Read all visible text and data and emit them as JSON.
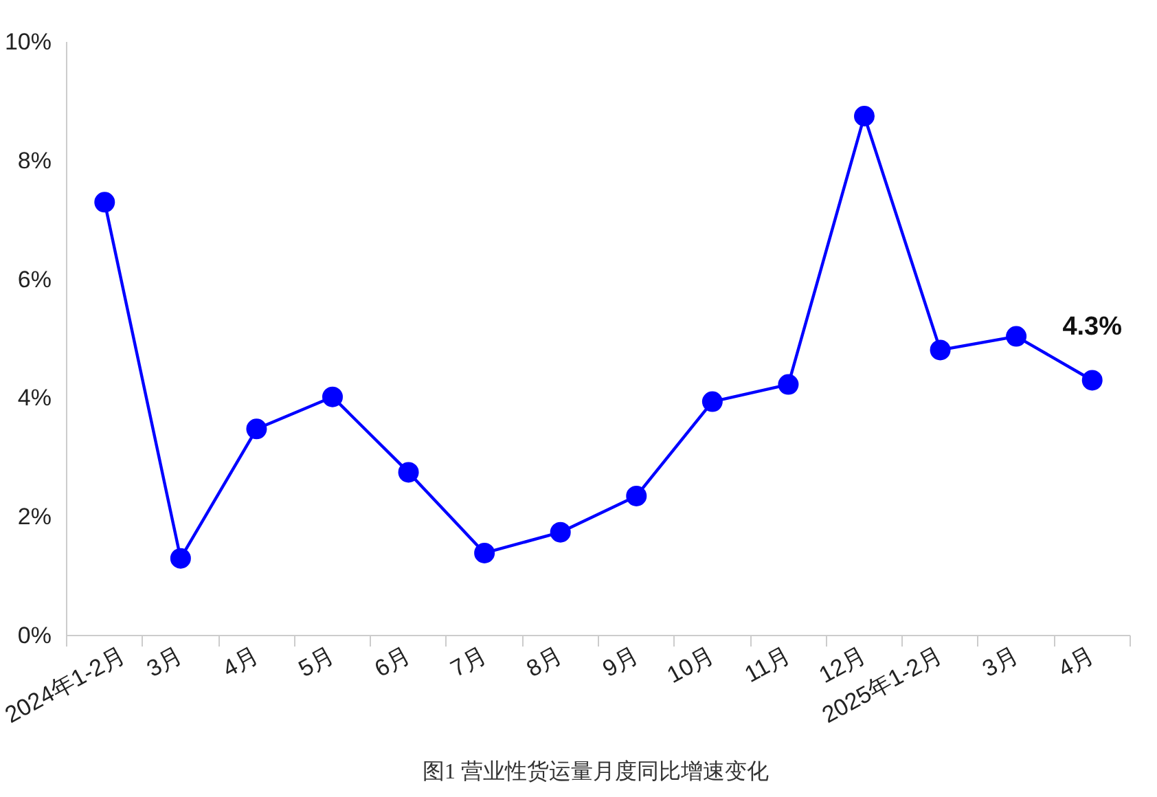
{
  "chart_data": {
    "type": "line",
    "categories": [
      "2024年1-2月",
      "3月",
      "4月",
      "5月",
      "6月",
      "7月",
      "8月",
      "9月",
      "10月",
      "11月",
      "12月",
      "2025年1-2月",
      "3月",
      "4月"
    ],
    "series": [
      {
        "color": "#0000ff",
        "values": [
          7.3,
          1.3,
          3.48,
          4.02,
          2.75,
          1.39,
          1.74,
          2.35,
          3.94,
          4.23,
          8.75,
          4.81,
          5.04,
          4.3
        ],
        "value_labels": [
          null,
          null,
          null,
          null,
          null,
          null,
          null,
          null,
          null,
          null,
          null,
          null,
          null,
          "4.3%"
        ]
      }
    ],
    "ylim": [
      0,
      10
    ],
    "yticks": [
      {
        "value": 0,
        "label": "0%"
      },
      {
        "value": 2,
        "label": "2%"
      },
      {
        "value": 4,
        "label": "4%"
      },
      {
        "value": 6,
        "label": "6%"
      },
      {
        "value": 8,
        "label": "8%"
      },
      {
        "value": 10,
        "label": "10%"
      }
    ],
    "grid": false,
    "marker": "circle",
    "line_style": "solid",
    "annotations": [
      "图1  营业性货运量月度同比增速变化"
    ]
  }
}
